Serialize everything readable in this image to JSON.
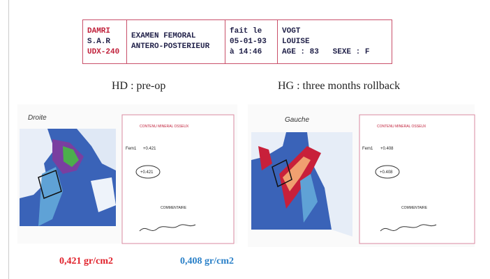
{
  "header": {
    "cells": [
      [
        "DAMRI",
        "S.A.R",
        "UDX-240"
      ],
      [
        "EXAMEN FEMORAL",
        "ANTERO-POSTERIEUR"
      ],
      [
        "fait le",
        "05-01-93",
        "à 14:46"
      ],
      [
        "VOGT",
        "LOUISE",
        "AGE : 83   SEXE : F"
      ]
    ]
  },
  "captions": [
    "HD : pre-op",
    "HG : three months rollback"
  ],
  "scans": [
    {
      "side_label": "Droite",
      "report_title": "CONTENU MINERAL OSSEUX",
      "row_label": "Fem1",
      "row_value": "+0.421",
      "circled_value": "+0.421",
      "comment": "COMMENTAIRE"
    },
    {
      "side_label": "Gauche",
      "report_title": "CONTENU MINERAL OSSEUX",
      "row_label": "Fem1",
      "row_value": "+0.408",
      "circled_value": "+0.408",
      "comment": "COMMENTAIRE"
    }
  ],
  "results": [
    "0,421 gr/cm2",
    "0,408 gr/cm2"
  ]
}
